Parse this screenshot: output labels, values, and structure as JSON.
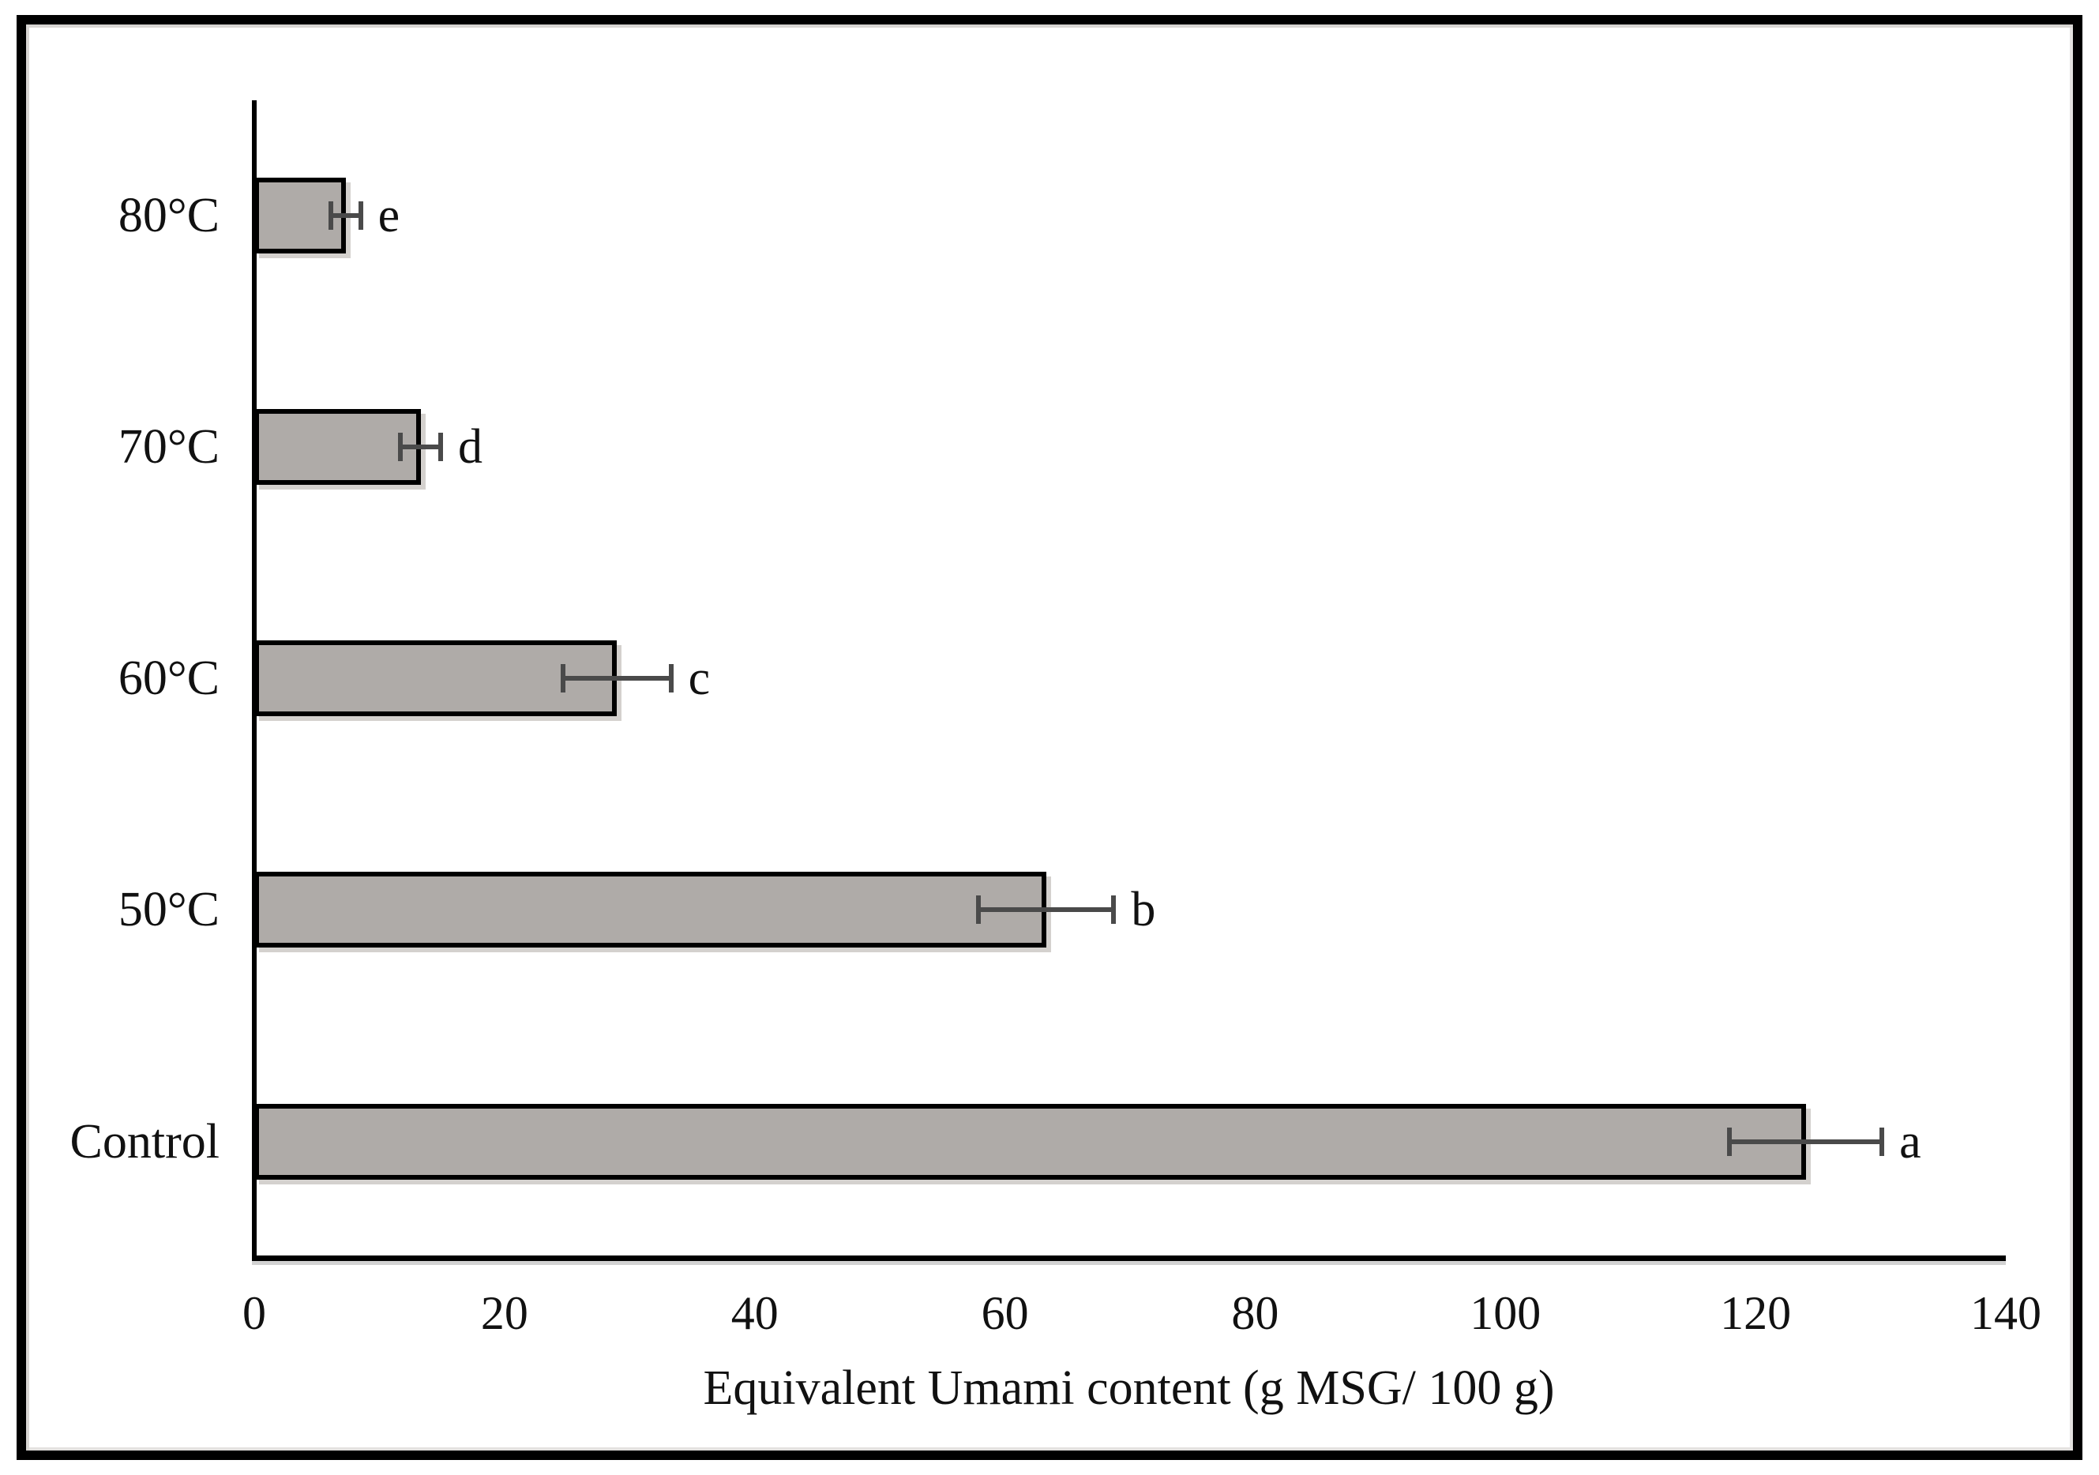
{
  "chart_data": {
    "type": "bar",
    "orientation": "horizontal",
    "title": "",
    "categories": [
      "80°C",
      "70°C",
      "60°C",
      "50°C",
      "Control"
    ],
    "values": [
      7.3,
      13.3,
      29,
      63.3,
      124
    ],
    "errors": [
      1.2,
      1.6,
      4.3,
      5.4,
      6.1
    ],
    "significance_letters": [
      "e",
      "d",
      "c",
      "b",
      "a"
    ],
    "xlabel": "Equivalent Umami content (g MSG/ 100 g)",
    "xlim": [
      0,
      140
    ],
    "xticks": [
      0,
      20,
      40,
      60,
      80,
      100,
      120,
      140
    ],
    "grid": "off",
    "legend": "none",
    "colors": {
      "bar_fill": "#afaba8",
      "bar_border": "#000000",
      "error_bar": "#4a4a4a",
      "axis": "#000000",
      "text": "#111111",
      "frame_border": "#000000",
      "background": "#ffffff"
    }
  }
}
